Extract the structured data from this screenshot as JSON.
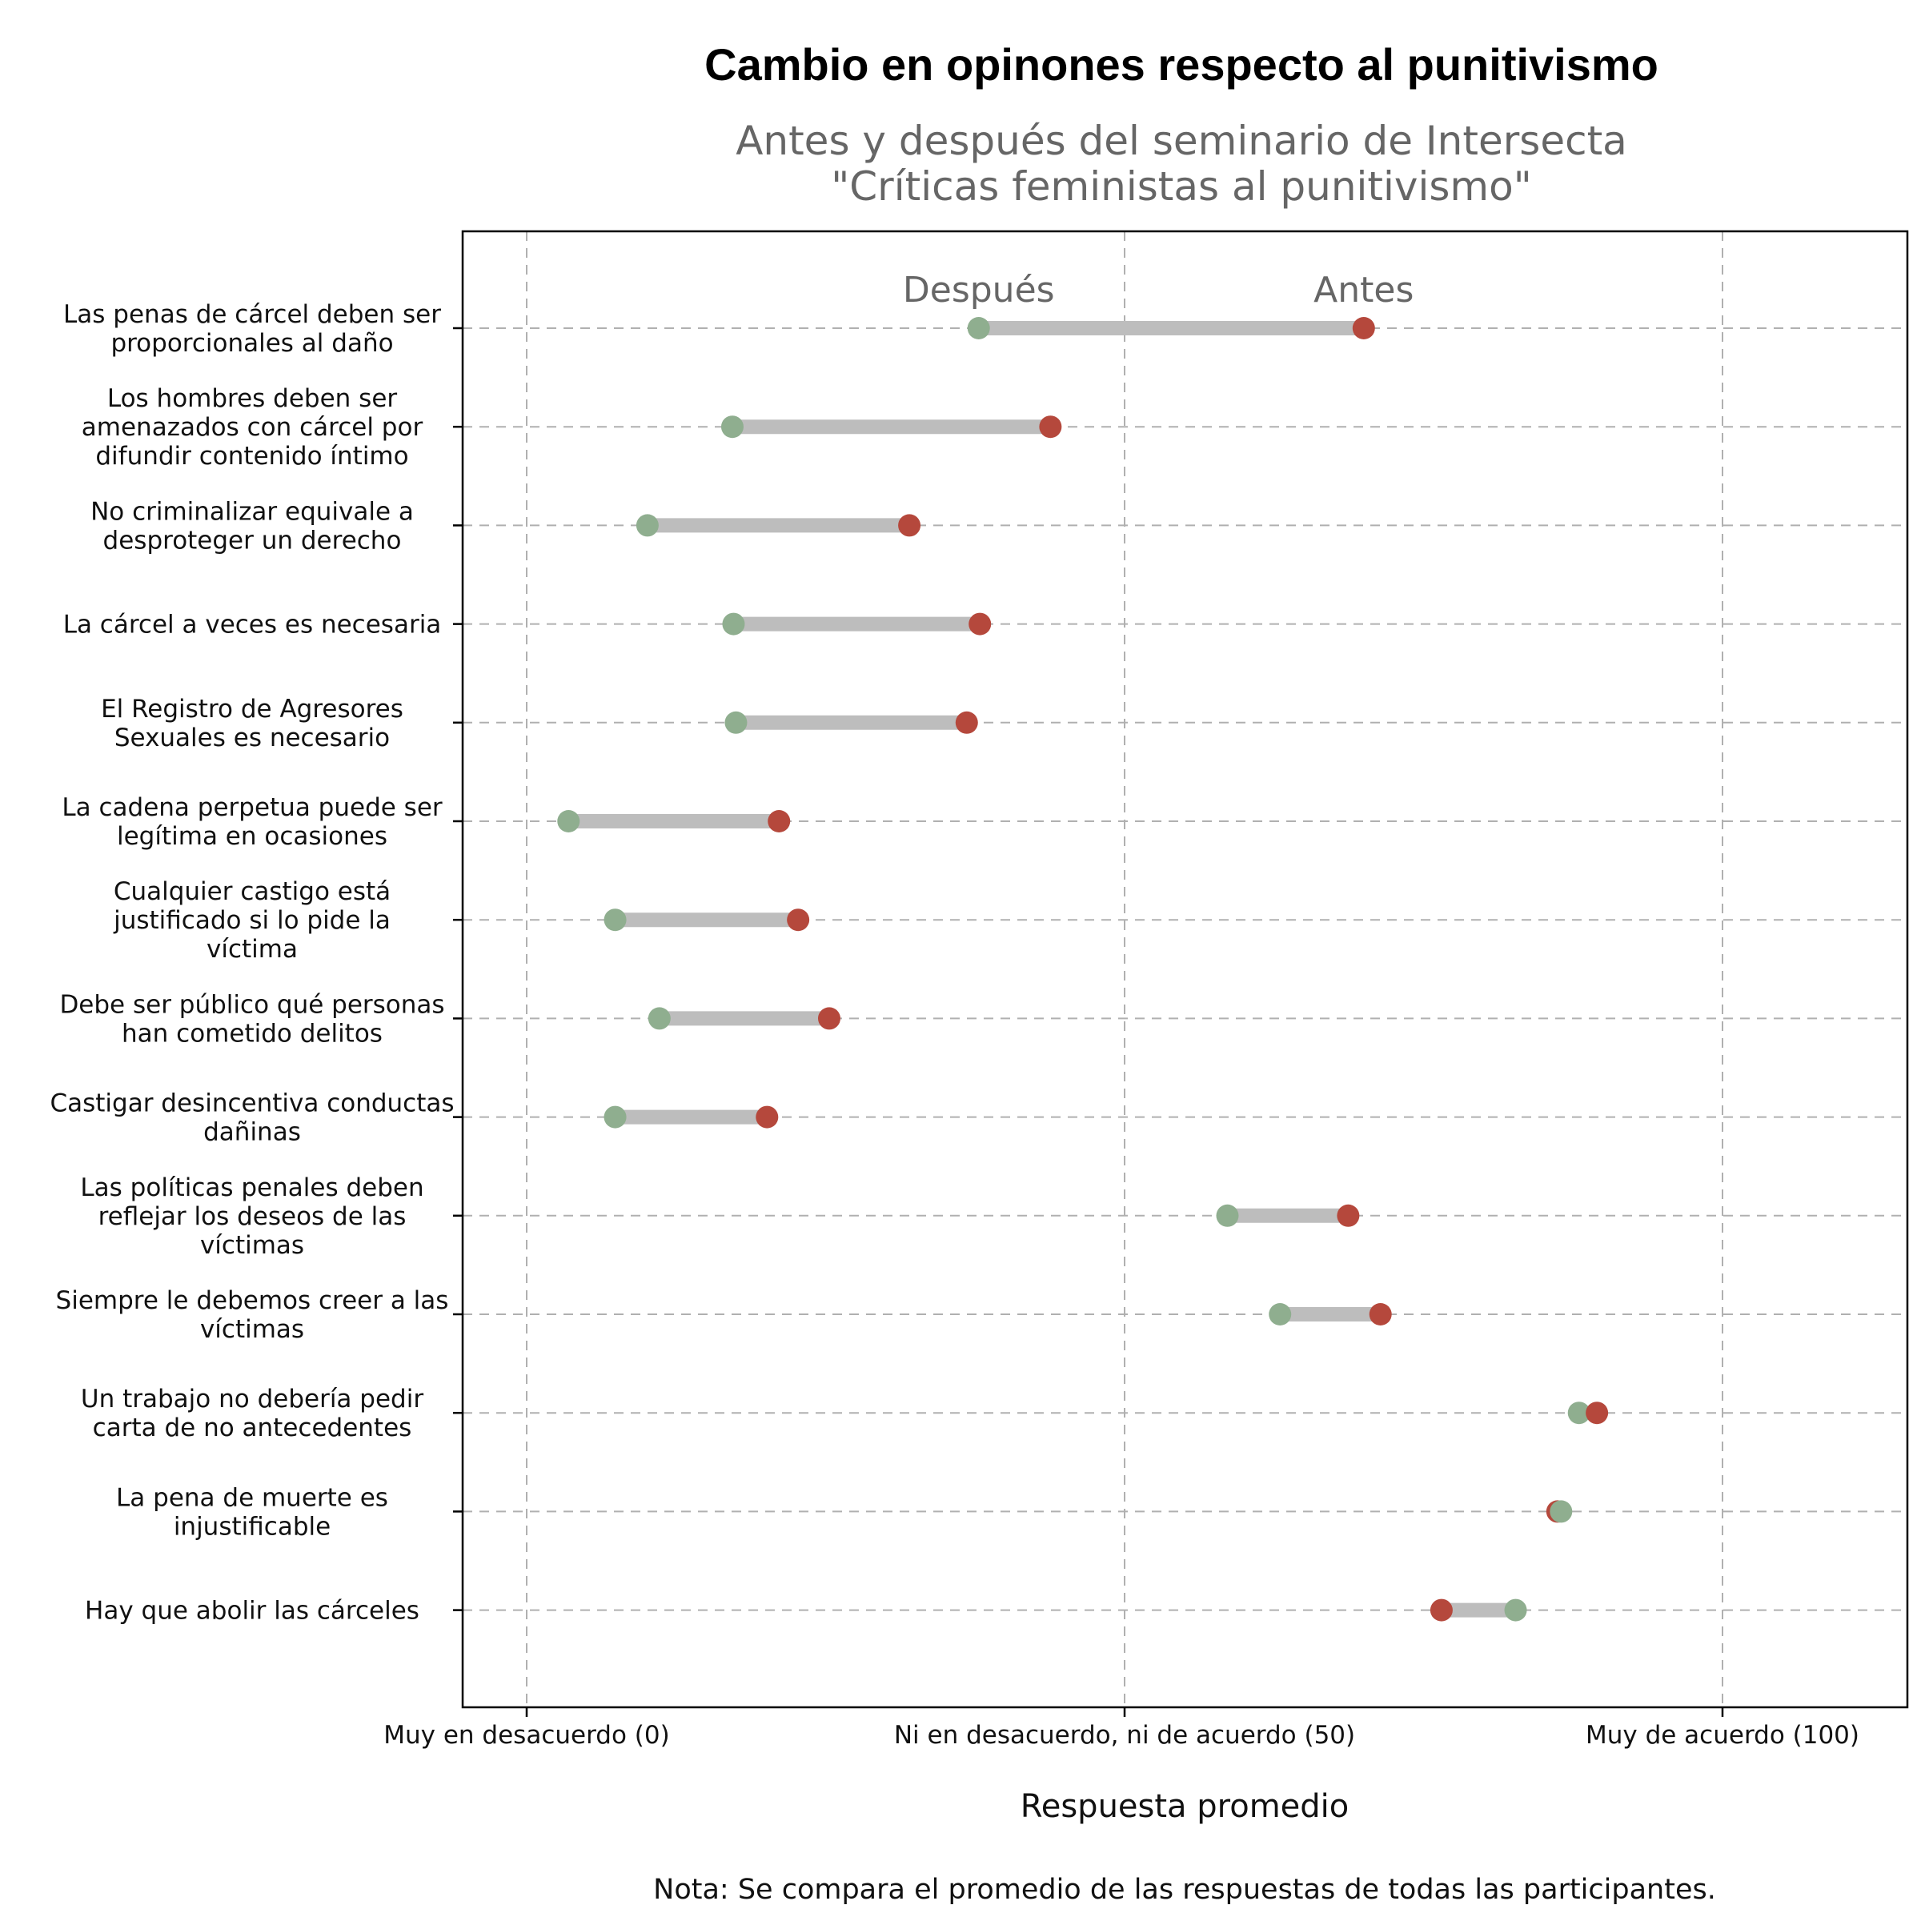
{
  "chart_data": {
    "type": "dumbbell",
    "title": "Cambio en opinones respecto al punitivismo",
    "subtitle": [
      "Antes y después del seminario de Intersecta",
      "\"Críticas feministas al punitivismo\""
    ],
    "xlabel": "Respuesta promedio",
    "note": "Nota: Se compara el promedio de las respuestas de todas las participantes.",
    "xlim": [
      -5,
      115
    ],
    "x_ticks": [
      {
        "value": 0,
        "label": "Muy en desacuerdo (0)"
      },
      {
        "value": 50,
        "label": "Ni en desacuerdo, ni de acuerdo (50)"
      },
      {
        "value": 100,
        "label": "Muy de acuerdo (100)"
      }
    ],
    "grid": true,
    "series": [
      {
        "name": "Antes",
        "color": "#b5483c"
      },
      {
        "name": "Después",
        "color": "#8fae8f"
      }
    ],
    "annotations": {
      "despues": "Después",
      "antes": "Antes"
    },
    "items": [
      {
        "label": [
          "Las penas de cárcel deben ser",
          "proporcionales al daño"
        ],
        "antes": 70,
        "despues": 37.8
      },
      {
        "label": [
          "Los hombres deben ser",
          "amenazados con cárcel por",
          "difundir contenido íntimo"
        ],
        "antes": 43.8,
        "despues": 17.2
      },
      {
        "label": [
          "No criminalizar equivale a",
          "desproteger un derecho"
        ],
        "antes": 32,
        "despues": 10.1
      },
      {
        "label": [
          "La cárcel a veces es necesaria"
        ],
        "antes": 37.9,
        "despues": 17.3
      },
      {
        "label": [
          "El Registro de Agresores",
          "Sexuales es necesario"
        ],
        "antes": 36.8,
        "despues": 17.5
      },
      {
        "label": [
          "La cadena perpetua puede ser",
          "legítima en ocasiones"
        ],
        "antes": 21.1,
        "despues": 3.5
      },
      {
        "label": [
          "Cualquier castigo está",
          "justificado si lo pide la",
          "víctima"
        ],
        "antes": 22.7,
        "despues": 7.4
      },
      {
        "label": [
          "Debe ser público qué personas",
          "han cometido delitos"
        ],
        "antes": 25.3,
        "despues": 11.1
      },
      {
        "label": [
          "Castigar desincentiva conductas",
          "dañinas"
        ],
        "antes": 20.1,
        "despues": 7.4
      },
      {
        "label": [
          "Las políticas penales deben",
          "reflejar los deseos de las",
          "víctimas"
        ],
        "antes": 68.7,
        "despues": 58.6
      },
      {
        "label": [
          "Siempre le debemos creer a las",
          "víctimas"
        ],
        "antes": 71.4,
        "despues": 63
      },
      {
        "label": [
          "Un trabajo no debería pedir",
          "carta de no antecedentes"
        ],
        "antes": 89.5,
        "despues": 88
      },
      {
        "label": [
          "La pena de muerte es",
          "injustificable"
        ],
        "antes": 86.2,
        "despues": 86.5
      },
      {
        "label": [
          "Hay que abolir las cárceles"
        ],
        "antes": 76.5,
        "despues": 82.7
      }
    ]
  }
}
